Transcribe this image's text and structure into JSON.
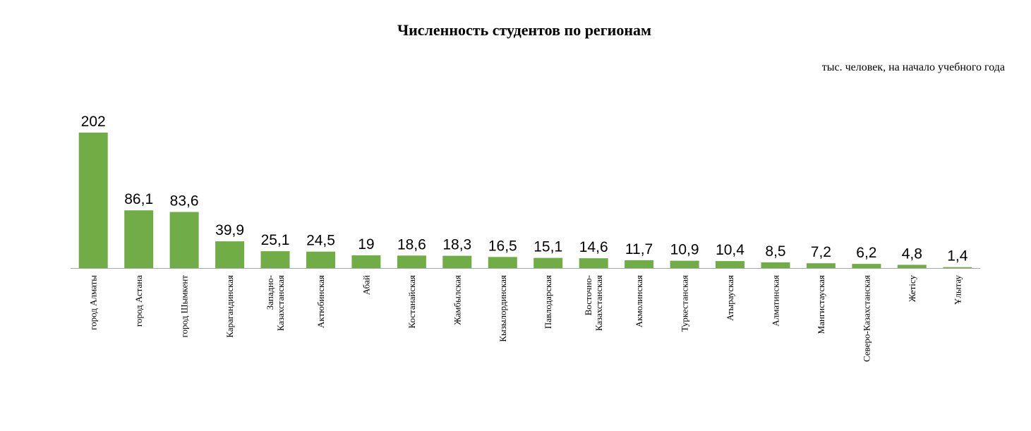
{
  "chart_data": {
    "type": "bar",
    "title": "Численность студентов по регионам",
    "subtitle": "тыс. человек, на начало учебного года",
    "categories": [
      "город Алматы",
      "город Астана",
      "город Шымкент",
      "Карагандинская",
      "Западно-Казахстанская",
      "Актюбинская",
      "Абай",
      "Костанайская",
      "Жамбылская",
      "Кызылординская",
      "Павлодарская",
      "Восточно-Казахстанская",
      "Акмолинская",
      "Туркестанская",
      "Атырауская",
      "Алматинская",
      "Мангистауская",
      "Северо-Казахстанская",
      "Жетісу",
      "Ұлытау"
    ],
    "category_lines": [
      [
        "город Алматы"
      ],
      [
        "город Астана"
      ],
      [
        "город Шымкент"
      ],
      [
        "Карагандинская"
      ],
      [
        "Западно-",
        "Казахстанская"
      ],
      [
        "Актюбинская"
      ],
      [
        "Абай"
      ],
      [
        "Костанайская"
      ],
      [
        "Жамбылская"
      ],
      [
        "Кызылординская"
      ],
      [
        "Павлодарская"
      ],
      [
        "Восточно-",
        "Казахстанская"
      ],
      [
        "Акмолинская"
      ],
      [
        "Туркестанская"
      ],
      [
        "Атырауская"
      ],
      [
        "Алматинская"
      ],
      [
        "Мангистауская"
      ],
      [
        "Северо-Казахстанская"
      ],
      [
        "Жетісу"
      ],
      [
        "Ұлытау"
      ]
    ],
    "values": [
      202,
      86.1,
      83.6,
      39.9,
      25.1,
      24.5,
      19,
      18.6,
      18.3,
      16.5,
      15.1,
      14.6,
      11.7,
      10.9,
      10.4,
      8.5,
      7.2,
      6.2,
      4.8,
      1.4
    ],
    "value_labels": [
      "202",
      "86,1",
      "83,6",
      "39,9",
      "25,1",
      "24,5",
      "19",
      "18,6",
      "18,3",
      "16,5",
      "15,1",
      "14,6",
      "11,7",
      "10,9",
      "10,4",
      "8,5",
      "7,2",
      "6,2",
      "4,8",
      "1,4"
    ],
    "ylim": [
      0,
      202
    ],
    "xlabel": "",
    "ylabel": "",
    "grid": false,
    "legend": false,
    "bar_color": "#70AD47",
    "axis_color": "#A6A6A6"
  }
}
